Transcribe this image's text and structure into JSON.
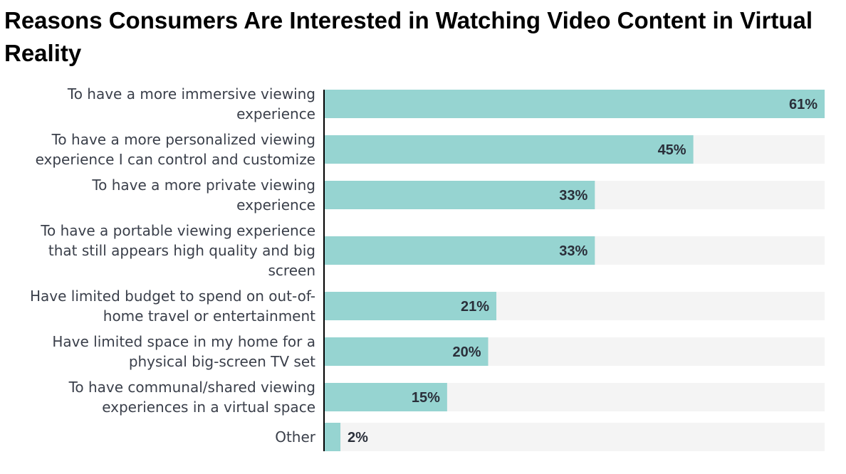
{
  "chart_data": {
    "type": "bar",
    "orientation": "horizontal",
    "title": "Reasons Consumers Are Interested in Watching Video Content in Virtual Reality",
    "xlabel": "",
    "ylabel": "",
    "xlim": [
      0,
      61
    ],
    "unit": "%",
    "categories": [
      [
        "To have a more immersive viewing",
        "experience"
      ],
      [
        "To have a more personalized viewing",
        "experience I can control and customize"
      ],
      [
        "To have a more private viewing",
        "experience"
      ],
      [
        "To have a portable viewing experience",
        "that still appears high quality and big",
        "screen"
      ],
      [
        "Have limited budget to spend on out-of-",
        "home travel or entertainment"
      ],
      [
        "Have limited space in my home for a",
        "physical big-screen TV set"
      ],
      [
        "To have communal/shared viewing",
        "experiences in a virtual space"
      ],
      [
        "Other"
      ]
    ],
    "values": [
      61,
      45,
      33,
      33,
      21,
      20,
      15,
      2
    ],
    "value_labels": [
      "61%",
      "45%",
      "33%",
      "33%",
      "21%",
      "20%",
      "15%",
      "2%"
    ],
    "colors": {
      "bar": "#96d4d1",
      "track": "#f4f4f4",
      "axis": "#000000"
    }
  }
}
